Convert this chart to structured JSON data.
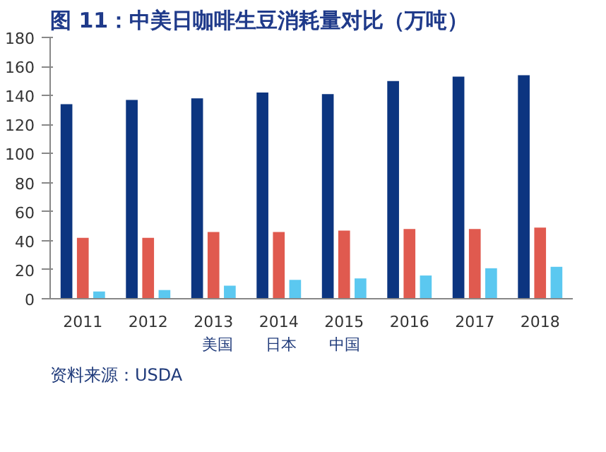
{
  "chart_data": {
    "type": "bar",
    "title": "图 11：中美日咖啡生豆消耗量对比（万吨）",
    "categories": [
      "2011",
      "2012",
      "2013",
      "2014",
      "2015",
      "2016",
      "2017",
      "2018"
    ],
    "series": [
      {
        "name": "美国",
        "color": "#0c3580",
        "values": [
          134,
          137,
          138,
          142,
          141,
          150,
          153,
          154
        ]
      },
      {
        "name": "日本",
        "color": "#e05a4f",
        "values": [
          42,
          42,
          46,
          46,
          47,
          48,
          48,
          49
        ]
      },
      {
        "name": "中国",
        "color": "#5bc8f0",
        "values": [
          5,
          6,
          9,
          13,
          14,
          16,
          21,
          22
        ]
      }
    ],
    "ylim": [
      0,
      180
    ],
    "yticks": [
      0,
      20,
      40,
      60,
      80,
      100,
      120,
      140,
      160,
      180
    ],
    "legend": "bottom",
    "annotations": [
      "资料来源：USDA"
    ]
  }
}
